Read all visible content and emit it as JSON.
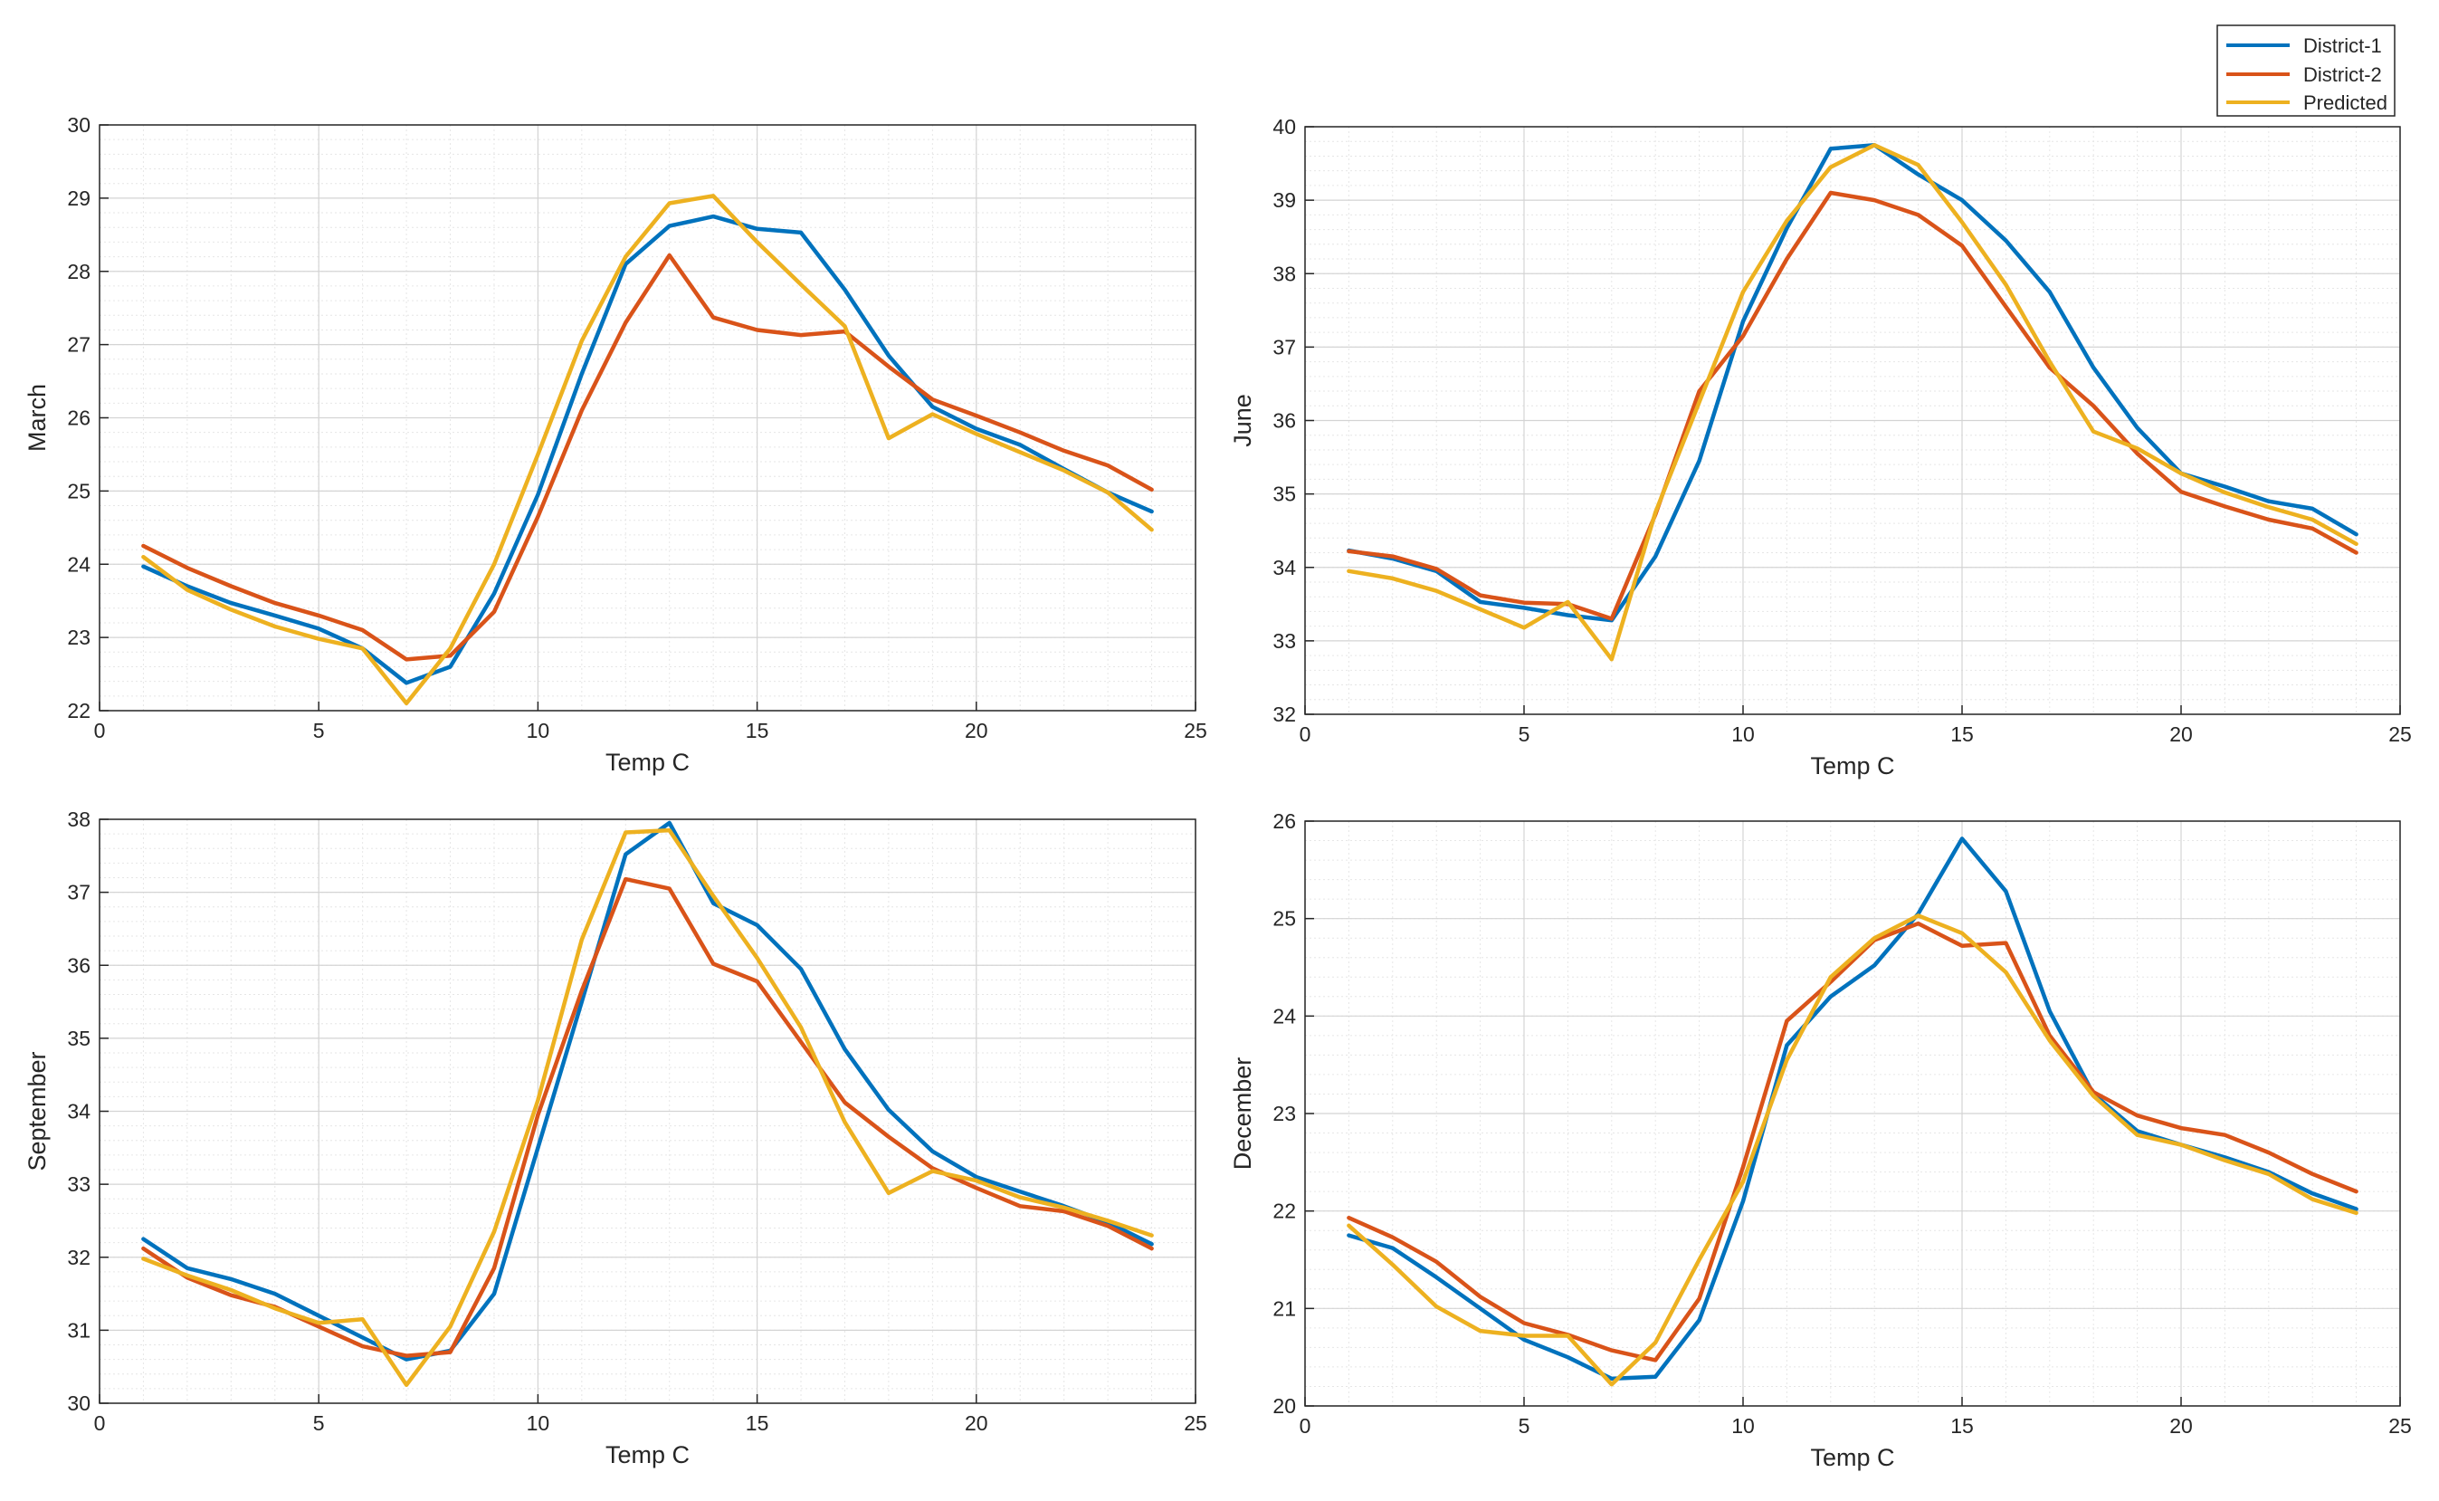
{
  "legend": {
    "entries": [
      {
        "name": "District-1",
        "color": "#0072BD"
      },
      {
        "name": "District-2",
        "color": "#D95319"
      },
      {
        "name": "Predicted",
        "color": "#EDB120"
      }
    ],
    "location": "top-right"
  },
  "chart_data": [
    {
      "type": "line",
      "title": "",
      "xlabel": "Temp C",
      "ylabel": "March",
      "xlim": [
        0,
        25
      ],
      "ylim": [
        22,
        30
      ],
      "xticks": [
        0,
        5,
        10,
        15,
        20,
        25
      ],
      "yticks": [
        22,
        23,
        24,
        25,
        26,
        27,
        28,
        29,
        30
      ],
      "grid": "on (major + minor)",
      "x": [
        1,
        2,
        3,
        4,
        5,
        6,
        7,
        8,
        9,
        10,
        11,
        12,
        13,
        14,
        15,
        16,
        17,
        18,
        19,
        20,
        21,
        22,
        23,
        24
      ],
      "series": [
        {
          "name": "District-1",
          "color": "#0072BD",
          "values": [
            23.97,
            23.7,
            23.47,
            23.3,
            23.12,
            22.85,
            22.38,
            22.6,
            23.6,
            24.95,
            26.6,
            28.1,
            28.62,
            28.75,
            28.58,
            28.53,
            27.75,
            26.85,
            26.15,
            25.85,
            25.63,
            25.3,
            24.98,
            24.72
          ]
        },
        {
          "name": "District-2",
          "color": "#D95319",
          "values": [
            24.25,
            23.95,
            23.7,
            23.47,
            23.3,
            23.1,
            22.7,
            22.75,
            23.35,
            24.65,
            26.1,
            27.3,
            28.22,
            27.37,
            27.2,
            27.13,
            27.18,
            26.7,
            26.25,
            26.03,
            25.8,
            25.55,
            25.35,
            25.02
          ]
        },
        {
          "name": "Predicted",
          "color": "#EDB120",
          "values": [
            24.1,
            23.65,
            23.38,
            23.15,
            22.98,
            22.85,
            22.1,
            22.85,
            24.0,
            25.5,
            27.05,
            28.2,
            28.93,
            29.03,
            28.4,
            27.82,
            27.25,
            25.72,
            26.05,
            25.78,
            25.53,
            25.28,
            24.98,
            24.47
          ]
        }
      ]
    },
    {
      "type": "line",
      "title": "",
      "xlabel": "Temp C",
      "ylabel": "June",
      "xlim": [
        0,
        25
      ],
      "ylim": [
        32,
        40
      ],
      "xticks": [
        0,
        5,
        10,
        15,
        20,
        25
      ],
      "yticks": [
        32,
        33,
        34,
        35,
        36,
        37,
        38,
        39,
        40
      ],
      "grid": "on (major + minor)",
      "x": [
        1,
        2,
        3,
        4,
        5,
        6,
        7,
        8,
        9,
        10,
        11,
        12,
        13,
        14,
        15,
        16,
        17,
        18,
        19,
        20,
        21,
        22,
        23,
        24
      ],
      "series": [
        {
          "name": "District-1",
          "color": "#0072BD",
          "values": [
            34.23,
            34.12,
            33.95,
            33.53,
            33.45,
            33.35,
            33.28,
            34.15,
            35.45,
            37.35,
            38.62,
            39.7,
            39.75,
            39.35,
            39.0,
            38.45,
            37.75,
            36.72,
            35.9,
            35.28,
            35.1,
            34.9,
            34.8,
            34.45
          ]
        },
        {
          "name": "District-2",
          "color": "#D95319",
          "values": [
            34.22,
            34.15,
            33.98,
            33.62,
            33.52,
            33.5,
            33.3,
            34.72,
            36.4,
            37.15,
            38.2,
            39.1,
            39.0,
            38.8,
            38.38,
            37.55,
            36.72,
            36.2,
            35.55,
            35.03,
            34.83,
            34.65,
            34.53,
            34.2
          ]
        },
        {
          "name": "Predicted",
          "color": "#EDB120",
          "values": [
            33.95,
            33.85,
            33.68,
            33.43,
            33.18,
            33.53,
            32.75,
            34.75,
            36.25,
            37.75,
            38.72,
            39.45,
            39.75,
            39.48,
            38.7,
            37.85,
            36.8,
            35.85,
            35.62,
            35.28,
            35.02,
            34.82,
            34.65,
            34.32
          ]
        }
      ]
    },
    {
      "type": "line",
      "title": "",
      "xlabel": "Temp C",
      "ylabel": "September",
      "xlim": [
        0,
        25
      ],
      "ylim": [
        30,
        38
      ],
      "xticks": [
        0,
        5,
        10,
        15,
        20,
        25
      ],
      "yticks": [
        30,
        31,
        32,
        33,
        34,
        35,
        36,
        37,
        38
      ],
      "grid": "on (major + minor)",
      "x": [
        1,
        2,
        3,
        4,
        5,
        6,
        7,
        8,
        9,
        10,
        11,
        12,
        13,
        14,
        15,
        16,
        17,
        18,
        19,
        20,
        21,
        22,
        23,
        24
      ],
      "series": [
        {
          "name": "District-1",
          "color": "#0072BD",
          "values": [
            32.25,
            31.85,
            31.7,
            31.5,
            31.2,
            30.9,
            30.6,
            30.72,
            31.5,
            33.5,
            35.5,
            37.52,
            37.95,
            36.85,
            36.55,
            35.95,
            34.85,
            34.02,
            33.45,
            33.1,
            32.9,
            32.7,
            32.48,
            32.18
          ]
        },
        {
          "name": "District-2",
          "color": "#D95319",
          "values": [
            32.12,
            31.72,
            31.48,
            31.32,
            31.05,
            30.78,
            30.65,
            30.7,
            31.85,
            33.95,
            35.65,
            37.18,
            37.05,
            36.02,
            35.78,
            34.95,
            34.12,
            33.65,
            33.22,
            32.95,
            32.7,
            32.63,
            32.43,
            32.12
          ]
        },
        {
          "name": "Predicted",
          "color": "#EDB120",
          "values": [
            31.98,
            31.75,
            31.55,
            31.3,
            31.1,
            31.15,
            30.25,
            31.05,
            32.35,
            34.15,
            36.35,
            37.82,
            37.85,
            36.95,
            36.1,
            35.15,
            33.85,
            32.88,
            33.18,
            33.05,
            32.82,
            32.68,
            32.5,
            32.3
          ]
        }
      ]
    },
    {
      "type": "line",
      "title": "",
      "xlabel": "Temp C",
      "ylabel": "December",
      "xlim": [
        0,
        25
      ],
      "ylim": [
        20,
        26
      ],
      "xticks": [
        0,
        5,
        10,
        15,
        20,
        25
      ],
      "yticks": [
        20,
        21,
        22,
        23,
        24,
        25,
        26
      ],
      "grid": "on (major + minor)",
      "x": [
        1,
        2,
        3,
        4,
        5,
        6,
        7,
        8,
        9,
        10,
        11,
        12,
        13,
        14,
        15,
        16,
        17,
        18,
        19,
        20,
        21,
        22,
        23,
        24
      ],
      "series": [
        {
          "name": "District-1",
          "color": "#0072BD",
          "values": [
            21.75,
            21.62,
            21.32,
            21.0,
            20.68,
            20.5,
            20.28,
            20.3,
            20.88,
            22.1,
            23.7,
            24.2,
            24.52,
            25.05,
            25.82,
            25.28,
            24.05,
            23.2,
            22.82,
            22.68,
            22.55,
            22.4,
            22.18,
            22.02
          ]
        },
        {
          "name": "District-2",
          "color": "#D95319",
          "values": [
            21.93,
            21.73,
            21.48,
            21.12,
            20.85,
            20.73,
            20.57,
            20.47,
            21.1,
            22.45,
            23.95,
            24.35,
            24.78,
            24.95,
            24.72,
            24.75,
            23.8,
            23.22,
            22.98,
            22.85,
            22.78,
            22.6,
            22.38,
            22.2
          ]
        },
        {
          "name": "Predicted",
          "color": "#EDB120",
          "values": [
            21.85,
            21.45,
            21.02,
            20.77,
            20.72,
            20.72,
            20.22,
            20.65,
            21.5,
            22.3,
            23.55,
            24.4,
            24.8,
            25.03,
            24.85,
            24.45,
            23.75,
            23.18,
            22.78,
            22.68,
            22.52,
            22.38,
            22.12,
            21.98
          ]
        }
      ]
    }
  ]
}
